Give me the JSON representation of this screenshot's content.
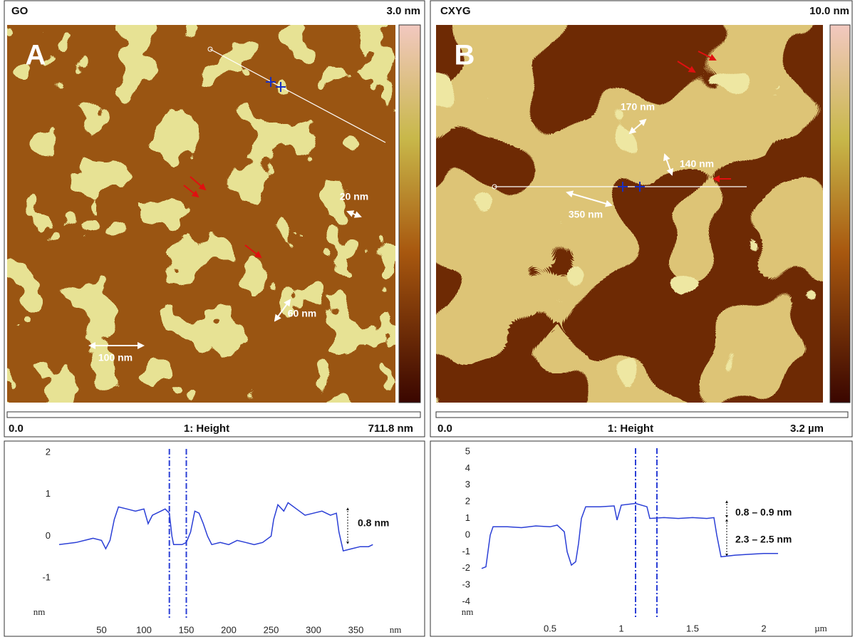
{
  "panels": [
    {
      "letter": "A",
      "sample": "GO",
      "scale_max": "3.0 nm",
      "scale_min": "0.0",
      "channel": "1: Height",
      "scan_size": "711.8 nm",
      "annotations": [
        "20 nm",
        "60 nm",
        "100 nm"
      ]
    },
    {
      "letter": "B",
      "sample": "CXYG",
      "scale_max": "10.0 nm",
      "scale_min": "0.0",
      "channel": "1: Height",
      "scan_size": "3.2 µm",
      "annotations": [
        "170 nm",
        "140 nm",
        "350 nm"
      ]
    }
  ],
  "chart_data": [
    {
      "type": "line",
      "y_label": "nm",
      "x_label": "nm",
      "color": "#2b3fd6",
      "xlim": [
        0,
        400
      ],
      "xticks": [
        50,
        100,
        150,
        200,
        250,
        300,
        350
      ],
      "ylim": [
        -2,
        2
      ],
      "yticks": [
        -1,
        0,
        1,
        2
      ],
      "cursors": [
        130,
        150
      ],
      "annotations": [
        "0.8 nm"
      ],
      "x": [
        0,
        20,
        40,
        50,
        55,
        60,
        65,
        70,
        80,
        90,
        100,
        105,
        110,
        120,
        125,
        130,
        133,
        135,
        145,
        150,
        155,
        160,
        165,
        170,
        175,
        180,
        190,
        200,
        210,
        220,
        230,
        240,
        250,
        253,
        258,
        265,
        270,
        280,
        290,
        300,
        310,
        320,
        327,
        330,
        335,
        345,
        355,
        365,
        370
      ],
      "values": [
        -0.2,
        -0.15,
        -0.05,
        -0.1,
        -0.3,
        -0.1,
        0.4,
        0.7,
        0.65,
        0.6,
        0.65,
        0.3,
        0.5,
        0.6,
        0.65,
        0.55,
        0.0,
        -0.2,
        -0.2,
        -0.15,
        0.1,
        0.6,
        0.55,
        0.3,
        0.0,
        -0.2,
        -0.15,
        -0.2,
        -0.1,
        -0.15,
        -0.2,
        -0.15,
        0.0,
        0.4,
        0.75,
        0.6,
        0.8,
        0.65,
        0.5,
        0.55,
        0.6,
        0.5,
        0.55,
        0.1,
        -0.35,
        -0.3,
        -0.25,
        -0.25,
        -0.2
      ]
    },
    {
      "type": "line",
      "y_label": "nm",
      "x_label": "µm",
      "color": "#2b3fd6",
      "xlim": [
        0,
        2.5
      ],
      "xticks": [
        0.5,
        1,
        1.5,
        2
      ],
      "ylim": [
        -5,
        5
      ],
      "yticks": [
        -4,
        -3,
        -2,
        -1,
        0,
        1,
        2,
        3,
        4,
        5
      ],
      "cursors": [
        1.1,
        1.25
      ],
      "annotations": [
        "0.8 – 0.9 nm",
        "2.3 – 2.5 nm"
      ],
      "x": [
        0.02,
        0.05,
        0.08,
        0.1,
        0.2,
        0.3,
        0.4,
        0.5,
        0.55,
        0.6,
        0.62,
        0.65,
        0.68,
        0.7,
        0.72,
        0.75,
        0.85,
        0.95,
        0.97,
        1.0,
        1.1,
        1.18,
        1.2,
        1.3,
        1.4,
        1.5,
        1.6,
        1.65,
        1.67,
        1.7,
        1.8,
        1.9,
        2.0,
        2.1
      ],
      "values": [
        -2,
        -1.9,
        0,
        0.5,
        0.5,
        0.45,
        0.55,
        0.5,
        0.6,
        0.2,
        -1,
        -1.8,
        -1.6,
        -0.5,
        1.0,
        1.7,
        1.7,
        1.75,
        0.9,
        1.8,
        1.9,
        1.7,
        1.0,
        1.05,
        1.0,
        1.05,
        1.0,
        1.05,
        0,
        -1.3,
        -1.2,
        -1.15,
        -1.1,
        -1.1
      ]
    }
  ]
}
